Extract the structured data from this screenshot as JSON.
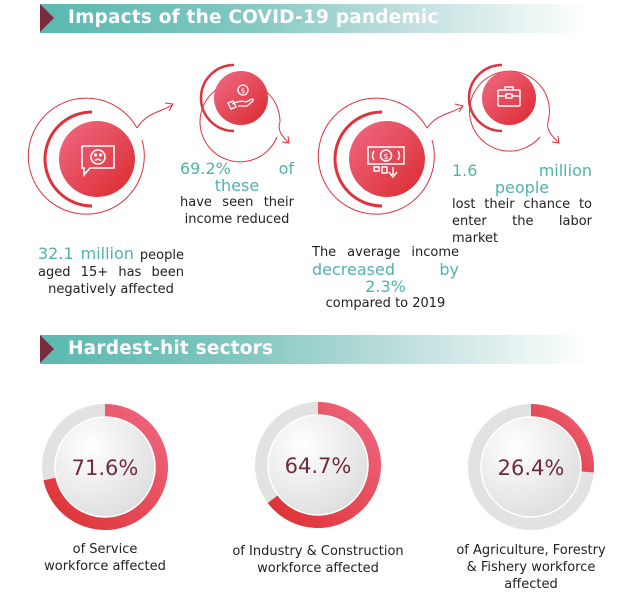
{
  "sections": {
    "impacts_title": "Impacts of the COVID-19 pandemic",
    "sectors_title": "Hardest-hit sectors"
  },
  "colors": {
    "teal": "#4fb3aa",
    "red": "#e0323a",
    "pink": "#ee6680",
    "maroon": "#7a2b3d",
    "grey_track": "#e2e2e2"
  },
  "impacts": [
    {
      "icon": "sad-face-chat-icon",
      "highlight": "32.1 million",
      "line1_rest": " people",
      "line2": "aged 15+ has been",
      "line3": "negatively affected"
    },
    {
      "icon": "hand-coin-icon",
      "highlight": "69.2% of these",
      "line2": "have seen their",
      "line3": "income reduced"
    },
    {
      "icon": "money-decrease-icon",
      "line1": "The average income",
      "highlight": "decreased by 2.3%",
      "line3": "compared to 2019"
    },
    {
      "icon": "briefcase-icon",
      "highlight": "1.6 million people",
      "line2": "lost their chance to",
      "line3": "enter the labor market"
    }
  ],
  "chart_data": {
    "type": "pie",
    "title": "Hardest-hit sectors",
    "categories": [
      "Service",
      "Industry & Construction",
      "Agriculture, Forestry & Fishery"
    ],
    "values": [
      71.6,
      64.7,
      26.4
    ],
    "unit": "%",
    "labels": [
      "71.6%",
      "64.7%",
      "26.4%"
    ],
    "captions": [
      [
        "of Service",
        "workforce affected"
      ],
      [
        "of Industry & Construction",
        "workforce affected"
      ],
      [
        "of Agriculture, Forestry",
        "& Fishery workforce",
        "affected"
      ]
    ]
  }
}
